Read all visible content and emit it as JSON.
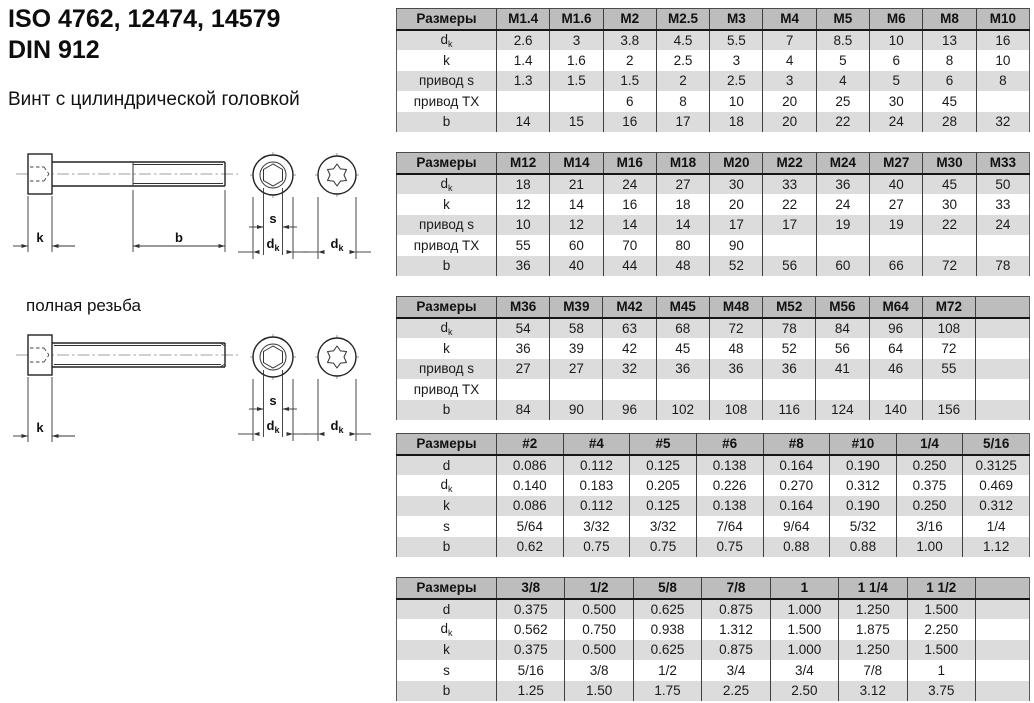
{
  "header": {
    "title_line1": "ISO 4762, 12474, 14579",
    "title_line2": "DIN 912",
    "subtitle": "Винт с цилиндрической головкой"
  },
  "drawing": {
    "full_thread_caption": "полная резьба",
    "dim_k": "k",
    "dim_b": "b",
    "dim_s": "s",
    "dim_d": "d",
    "dim_d_sub": "k"
  },
  "colors": {
    "header_bg": "#bdbdbd",
    "stripe_bg": "#dcdcdc",
    "grid_line": "#3f3f3f",
    "header_rule": "#151515",
    "text": "#1a1a1a"
  },
  "tables": [
    {
      "name": "metric-m1_4-m10",
      "corner_label": "Размеры",
      "columns": [
        "M1.4",
        "M1.6",
        "M2",
        "M2.5",
        "M3",
        "M4",
        "M5",
        "M6",
        "M8",
        "M10"
      ],
      "rows": [
        {
          "label": "d",
          "sub": "k",
          "values": [
            "2.6",
            "3",
            "3.8",
            "4.5",
            "5.5",
            "7",
            "8.5",
            "10",
            "13",
            "16"
          ]
        },
        {
          "label": "k",
          "sub": "",
          "values": [
            "1.4",
            "1.6",
            "2",
            "2.5",
            "3",
            "4",
            "5",
            "6",
            "8",
            "10"
          ]
        },
        {
          "label": "привод s",
          "sub": "",
          "values": [
            "1.3",
            "1.5",
            "1.5",
            "2",
            "2.5",
            "3",
            "4",
            "5",
            "6",
            "8"
          ]
        },
        {
          "label": "привод TX",
          "sub": "",
          "values": [
            "",
            "",
            "6",
            "8",
            "10",
            "20",
            "25",
            "30",
            "45",
            ""
          ]
        },
        {
          "label": "b",
          "sub": "",
          "values": [
            "14",
            "15",
            "16",
            "17",
            "18",
            "20",
            "22",
            "24",
            "28",
            "32"
          ]
        }
      ]
    },
    {
      "name": "metric-m12-m33",
      "corner_label": "Размеры",
      "columns": [
        "M12",
        "M14",
        "M16",
        "M18",
        "M20",
        "M22",
        "M24",
        "M27",
        "M30",
        "M33"
      ],
      "rows": [
        {
          "label": "d",
          "sub": "k",
          "values": [
            "18",
            "21",
            "24",
            "27",
            "30",
            "33",
            "36",
            "40",
            "45",
            "50"
          ]
        },
        {
          "label": "k",
          "sub": "",
          "values": [
            "12",
            "14",
            "16",
            "18",
            "20",
            "22",
            "24",
            "27",
            "30",
            "33"
          ]
        },
        {
          "label": "привод s",
          "sub": "",
          "values": [
            "10",
            "12",
            "14",
            "14",
            "17",
            "17",
            "19",
            "19",
            "22",
            "24"
          ]
        },
        {
          "label": "привод TX",
          "sub": "",
          "values": [
            "55",
            "60",
            "70",
            "80",
            "90",
            "",
            "",
            "",
            "",
            ""
          ]
        },
        {
          "label": "b",
          "sub": "",
          "values": [
            "36",
            "40",
            "44",
            "48",
            "52",
            "56",
            "60",
            "66",
            "72",
            "78"
          ]
        }
      ]
    },
    {
      "name": "metric-m36-m72",
      "corner_label": "Размеры",
      "columns": [
        "M36",
        "M39",
        "M42",
        "M45",
        "M48",
        "M52",
        "M56",
        "M64",
        "M72",
        ""
      ],
      "rows": [
        {
          "label": "d",
          "sub": "k",
          "values": [
            "54",
            "58",
            "63",
            "68",
            "72",
            "78",
            "84",
            "96",
            "108",
            ""
          ]
        },
        {
          "label": "k",
          "sub": "",
          "values": [
            "36",
            "39",
            "42",
            "45",
            "48",
            "52",
            "56",
            "64",
            "72",
            ""
          ]
        },
        {
          "label": "привод s",
          "sub": "",
          "values": [
            "27",
            "27",
            "32",
            "36",
            "36",
            "36",
            "41",
            "46",
            "55",
            ""
          ]
        },
        {
          "label": "привод TX",
          "sub": "",
          "values": [
            "",
            "",
            "",
            "",
            "",
            "",
            "",
            "",
            "",
            ""
          ]
        },
        {
          "label": "b",
          "sub": "",
          "values": [
            "84",
            "90",
            "96",
            "102",
            "108",
            "116",
            "124",
            "140",
            "156",
            ""
          ]
        }
      ]
    },
    {
      "name": "imperial-no2-5_16",
      "corner_label": "Размеры",
      "columns": [
        "#2",
        "#4",
        "#5",
        "#6",
        "#8",
        "#10",
        "1/4",
        "5/16"
      ],
      "rows": [
        {
          "label": "d",
          "sub": "",
          "values": [
            "0.086",
            "0.112",
            "0.125",
            "0.138",
            "0.164",
            "0.190",
            "0.250",
            "0.3125"
          ]
        },
        {
          "label": "d",
          "sub": "k",
          "values": [
            "0.140",
            "0.183",
            "0.205",
            "0.226",
            "0.270",
            "0.312",
            "0.375",
            "0.469"
          ]
        },
        {
          "label": "k",
          "sub": "",
          "values": [
            "0.086",
            "0.112",
            "0.125",
            "0.138",
            "0.164",
            "0.190",
            "0.250",
            "0.312"
          ]
        },
        {
          "label": "s",
          "sub": "",
          "values": [
            "5/64",
            "3/32",
            "3/32",
            "7/64",
            "9/64",
            "5/32",
            "3/16",
            "1/4"
          ]
        },
        {
          "label": "b",
          "sub": "",
          "values": [
            "0.62",
            "0.75",
            "0.75",
            "0.75",
            "0.88",
            "0.88",
            "1.00",
            "1.12"
          ]
        }
      ]
    },
    {
      "name": "imperial-3_8-1_1_2",
      "corner_label": "Размеры",
      "columns": [
        "3/8",
        "1/2",
        "5/8",
        "7/8",
        "1",
        "1 1/4",
        "1 1/2",
        ""
      ],
      "rows": [
        {
          "label": "d",
          "sub": "",
          "values": [
            "0.375",
            "0.500",
            "0.625",
            "0.875",
            "1.000",
            "1.250",
            "1.500",
            ""
          ]
        },
        {
          "label": "d",
          "sub": "k",
          "values": [
            "0.562",
            "0.750",
            "0.938",
            "1.312",
            "1.500",
            "1.875",
            "2.250",
            ""
          ]
        },
        {
          "label": "k",
          "sub": "",
          "values": [
            "0.375",
            "0.500",
            "0.625",
            "0.875",
            "1.000",
            "1.250",
            "1.500",
            ""
          ]
        },
        {
          "label": "s",
          "sub": "",
          "values": [
            "5/16",
            "3/8",
            "1/2",
            "3/4",
            "3/4",
            "7/8",
            "1",
            ""
          ]
        },
        {
          "label": "b",
          "sub": "",
          "values": [
            "1.25",
            "1.50",
            "1.75",
            "2.25",
            "2.50",
            "3.12",
            "3.75",
            ""
          ]
        }
      ]
    }
  ]
}
